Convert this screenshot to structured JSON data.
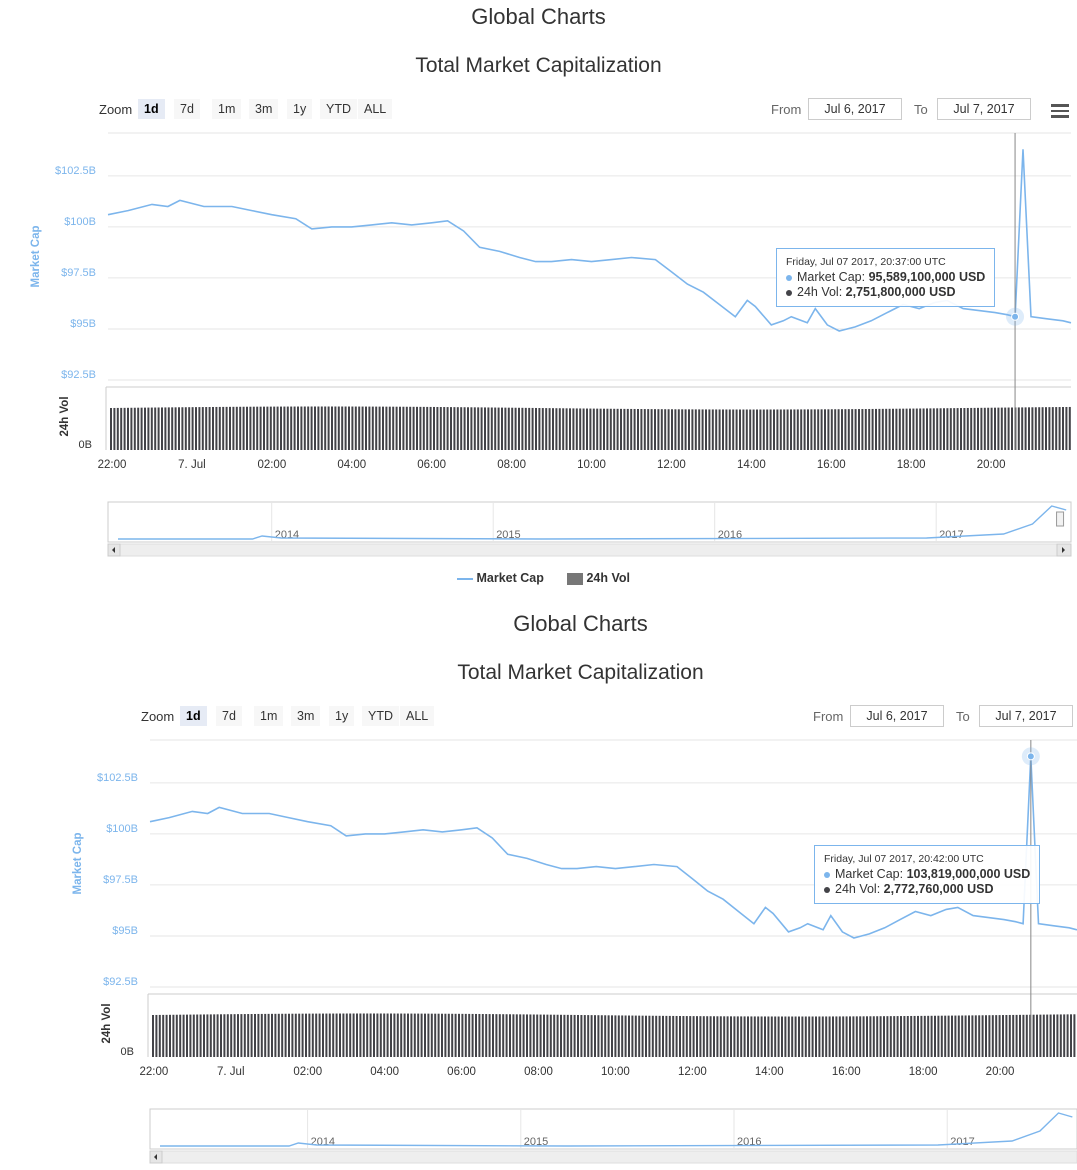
{
  "page": {
    "title": "Global Charts",
    "subtitle": "Total Market Capitalization"
  },
  "toolbar": {
    "zoom_label": "Zoom",
    "zoom_buttons": [
      "1d",
      "7d",
      "1m",
      "3m",
      "1y",
      "YTD",
      "ALL"
    ],
    "active_zoom": "1d",
    "from_label": "From",
    "from_value": "Jul 6, 2017",
    "to_label": "To",
    "to_value": "Jul 7, 2017",
    "menu_icon": "hamburger-menu-icon"
  },
  "legend": {
    "items": [
      "Market Cap",
      "24h Vol"
    ]
  },
  "colors": {
    "market_cap_line": "#7cb5ec",
    "volume_bars": "#434348",
    "grid": "#e6e6e6",
    "axis_label": "#7cb5ec"
  },
  "navigator": {
    "years": [
      "2014",
      "2015",
      "2016",
      "2017"
    ]
  },
  "tooltips": [
    {
      "timestamp": "Friday, Jul 07 2017, 20:37:00 UTC",
      "market_cap_label": "Market Cap:",
      "market_cap_value": "95,589,100,000 USD",
      "vol_label": "24h Vol:",
      "vol_value": "2,751,800,000 USD"
    },
    {
      "timestamp": "Friday, Jul 07 2017, 20:42:00 UTC",
      "market_cap_label": "Market Cap:",
      "market_cap_value": "103,819,000,000 USD",
      "vol_label": "24h Vol:",
      "vol_value": "2,772,760,000 USD"
    }
  ],
  "chart_data": [
    {
      "type": "line",
      "title": "Total Market Capitalization",
      "ylabel": "Market Cap",
      "y2label": "24h Vol",
      "ylim": [
        92.5,
        105
      ],
      "yticks": [
        "$92.5B",
        "$95B",
        "$97.5B",
        "$100B",
        "$102.5B"
      ],
      "y2ticks": [
        "0B"
      ],
      "xticks": [
        "22:00",
        "7. Jul",
        "02:00",
        "04:00",
        "06:00",
        "08:00",
        "10:00",
        "12:00",
        "14:00",
        "16:00",
        "18:00",
        "20:00"
      ],
      "x_hours": [
        -2,
        0,
        2,
        4,
        6,
        8,
        10,
        12,
        14,
        16,
        18,
        20
      ],
      "series": [
        {
          "name": "Market Cap",
          "unit": "$B",
          "points": [
            [
              -2.1,
              100.6
            ],
            [
              -1.6,
              100.8
            ],
            [
              -1.0,
              101.1
            ],
            [
              -0.6,
              101.0
            ],
            [
              -0.3,
              101.3
            ],
            [
              0.3,
              101.0
            ],
            [
              1.0,
              101.0
            ],
            [
              1.5,
              100.8
            ],
            [
              2.0,
              100.6
            ],
            [
              2.6,
              100.4
            ],
            [
              3.0,
              99.9
            ],
            [
              3.5,
              100.0
            ],
            [
              4.0,
              100.0
            ],
            [
              4.5,
              100.1
            ],
            [
              5.0,
              100.2
            ],
            [
              5.5,
              100.1
            ],
            [
              6.0,
              100.2
            ],
            [
              6.4,
              100.3
            ],
            [
              6.8,
              99.8
            ],
            [
              7.2,
              99.0
            ],
            [
              7.7,
              98.8
            ],
            [
              8.2,
              98.5
            ],
            [
              8.6,
              98.3
            ],
            [
              9.0,
              98.3
            ],
            [
              9.5,
              98.4
            ],
            [
              10.0,
              98.3
            ],
            [
              10.5,
              98.4
            ],
            [
              11.0,
              98.5
            ],
            [
              11.6,
              98.4
            ],
            [
              12.0,
              97.8
            ],
            [
              12.4,
              97.2
            ],
            [
              12.8,
              96.8
            ],
            [
              13.2,
              96.2
            ],
            [
              13.6,
              95.6
            ],
            [
              13.9,
              96.4
            ],
            [
              14.1,
              96.1
            ],
            [
              14.5,
              95.2
            ],
            [
              14.8,
              95.4
            ],
            [
              15.0,
              95.6
            ],
            [
              15.4,
              95.3
            ],
            [
              15.6,
              96.0
            ],
            [
              15.9,
              95.2
            ],
            [
              16.2,
              94.9
            ],
            [
              16.6,
              95.1
            ],
            [
              17.0,
              95.4
            ],
            [
              17.4,
              95.8
            ],
            [
              17.8,
              96.2
            ],
            [
              18.2,
              96.0
            ],
            [
              18.6,
              96.3
            ],
            [
              18.9,
              96.4
            ],
            [
              19.3,
              96.0
            ],
            [
              19.7,
              95.9
            ],
            [
              20.1,
              95.8
            ],
            [
              20.4,
              95.7
            ],
            [
              20.6,
              95.6
            ],
            [
              20.8,
              103.8
            ],
            [
              21.0,
              95.6
            ],
            [
              21.4,
              95.5
            ],
            [
              21.8,
              95.4
            ],
            [
              22.0,
              95.3
            ]
          ]
        },
        {
          "name": "24h Vol",
          "unit": "$B",
          "approx_level": 2.75
        }
      ],
      "x_range_hours": [
        -2.1,
        22.0
      ],
      "grid": true,
      "legend_position": "bottom-center",
      "crosshair_hour": 20.6
    }
  ]
}
